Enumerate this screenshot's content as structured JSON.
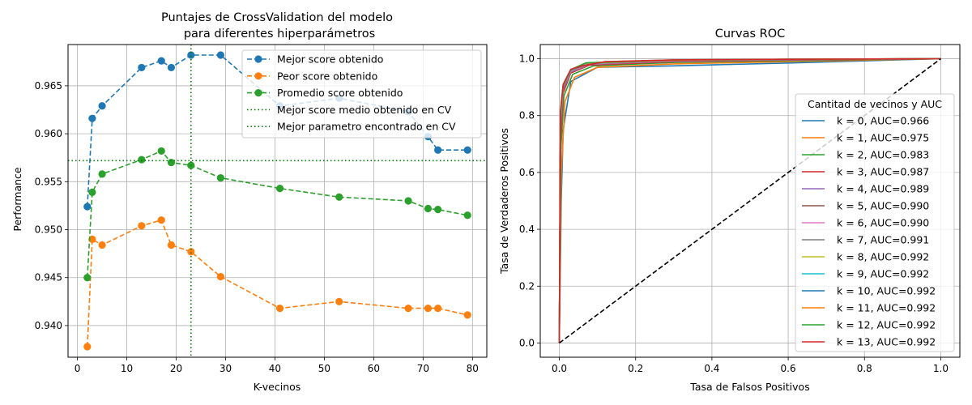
{
  "chart_data": [
    {
      "type": "line",
      "title": "Puntajes de CrossValidation del modelo",
      "subtitle": "para diferentes hiperparámetros",
      "xlabel": "K-vecinos",
      "ylabel": "Performance",
      "xlim": [
        -1.9,
        82.9
      ],
      "ylim": [
        0.9367,
        0.9693
      ],
      "xticks": [
        0,
        10,
        20,
        30,
        40,
        50,
        60,
        70,
        80
      ],
      "yticks": [
        0.94,
        0.945,
        0.95,
        0.955,
        0.96,
        0.965
      ],
      "xtick_labels": [
        "0",
        "10",
        "20",
        "30",
        "40",
        "50",
        "60",
        "70",
        "80"
      ],
      "ytick_labels": [
        "0.940",
        "0.945",
        "0.950",
        "0.955",
        "0.960",
        "0.965"
      ],
      "grid": true,
      "legend_position": "top-right",
      "x": [
        2,
        3,
        5,
        13,
        17,
        19,
        23,
        29,
        41,
        53,
        67,
        71,
        73,
        79
      ],
      "series": [
        {
          "name": "Mejor score obtenido",
          "color": "#1f77b4",
          "style": "dashed-marker",
          "values": [
            0.9524,
            0.9616,
            0.9629,
            0.9669,
            0.9676,
            0.9669,
            0.9682,
            0.9682,
            0.9629,
            0.9637,
            0.9623,
            0.9597,
            0.9583,
            0.9583
          ]
        },
        {
          "name": "Peor score obtenido",
          "color": "#ff7f0e",
          "style": "dashed-marker",
          "values": [
            0.9378,
            0.949,
            0.9484,
            0.9504,
            0.951,
            0.9484,
            0.9477,
            0.9451,
            0.9418,
            0.9425,
            0.9418,
            0.9418,
            0.9418,
            0.9411
          ]
        },
        {
          "name": "Promedio score obtenido",
          "color": "#2ca02c",
          "style": "dashed-marker",
          "values": [
            0.945,
            0.9539,
            0.9558,
            0.9573,
            0.9582,
            0.957,
            0.9567,
            0.9554,
            0.9543,
            0.9534,
            0.953,
            0.9522,
            0.9521,
            0.9515
          ]
        }
      ],
      "reference_lines": [
        {
          "name": "Mejor score medio obtenido en CV",
          "orientation": "horizontal",
          "value": 0.9572,
          "color": "#008000",
          "style": "dotted"
        },
        {
          "name": "Mejor parametro encontrado en CV",
          "orientation": "vertical",
          "value": 23,
          "color": "#008000",
          "style": "dotted"
        }
      ]
    },
    {
      "type": "line",
      "title": "Curvas ROC",
      "xlabel": "Tasa de Falsos Positivos",
      "ylabel": "Tasa de Verdaderos Positivos",
      "xlim": [
        -0.05,
        1.05
      ],
      "ylim": [
        -0.05,
        1.05
      ],
      "xticks": [
        0.0,
        0.2,
        0.4,
        0.6,
        0.8,
        1.0
      ],
      "yticks": [
        0.0,
        0.2,
        0.4,
        0.6,
        0.8,
        1.0
      ],
      "xtick_labels": [
        "0.0",
        "0.2",
        "0.4",
        "0.6",
        "0.8",
        "1.0"
      ],
      "ytick_labels": [
        "0.0",
        "0.2",
        "0.4",
        "0.6",
        "0.8",
        "1.0"
      ],
      "grid": true,
      "legend_title": "Cantitad de vecinos y AUC",
      "legend_position": "center-right",
      "diagonal": {
        "color": "#000000",
        "style": "dashed",
        "points": [
          [
            0,
            0
          ],
          [
            1,
            1
          ]
        ]
      },
      "series": [
        {
          "name": "k = 0, AUC=0.966",
          "color": "#1f77b4",
          "points": [
            [
              0,
              0
            ],
            [
              0.005,
              0.5
            ],
            [
              0.01,
              0.75
            ],
            [
              0.03,
              0.92
            ],
            [
              0.1,
              0.97
            ],
            [
              0.3,
              0.975
            ],
            [
              0.6,
              0.985
            ],
            [
              1,
              1
            ]
          ]
        },
        {
          "name": "k = 1, AUC=0.975",
          "color": "#ff7f0e",
          "points": [
            [
              0,
              0
            ],
            [
              0.005,
              0.6
            ],
            [
              0.015,
              0.85
            ],
            [
              0.04,
              0.935
            ],
            [
              0.1,
              0.97
            ],
            [
              0.3,
              0.982
            ],
            [
              0.6,
              0.99
            ],
            [
              1,
              1
            ]
          ]
        },
        {
          "name": "k = 2, AUC=0.983",
          "color": "#2ca02c",
          "points": [
            [
              0,
              0
            ],
            [
              0.004,
              0.68
            ],
            [
              0.012,
              0.87
            ],
            [
              0.035,
              0.945
            ],
            [
              0.09,
              0.975
            ],
            [
              0.3,
              0.987
            ],
            [
              0.6,
              0.993
            ],
            [
              1,
              1
            ]
          ]
        },
        {
          "name": "k = 3, AUC=0.987",
          "color": "#d62728",
          "points": [
            [
              0,
              0
            ],
            [
              0.003,
              0.72
            ],
            [
              0.01,
              0.88
            ],
            [
              0.03,
              0.95
            ],
            [
              0.08,
              0.978
            ],
            [
              0.3,
              0.99
            ],
            [
              0.6,
              0.995
            ],
            [
              1,
              1
            ]
          ]
        },
        {
          "name": "k = 4, AUC=0.989",
          "color": "#9467bd",
          "points": [
            [
              0,
              0
            ],
            [
              0.003,
              0.75
            ],
            [
              0.01,
              0.89
            ],
            [
              0.03,
              0.953
            ],
            [
              0.08,
              0.98
            ],
            [
              0.3,
              0.992
            ],
            [
              0.6,
              0.996
            ],
            [
              1,
              1
            ]
          ]
        },
        {
          "name": "k = 5, AUC=0.990",
          "color": "#8c564b",
          "points": [
            [
              0,
              0
            ],
            [
              0.003,
              0.77
            ],
            [
              0.01,
              0.895
            ],
            [
              0.03,
              0.955
            ],
            [
              0.08,
              0.981
            ],
            [
              0.3,
              0.993
            ],
            [
              0.6,
              0.997
            ],
            [
              1,
              1
            ]
          ]
        },
        {
          "name": "k = 6, AUC=0.990",
          "color": "#e377c2",
          "points": [
            [
              0,
              0
            ],
            [
              0.003,
              0.78
            ],
            [
              0.01,
              0.9
            ],
            [
              0.03,
              0.956
            ],
            [
              0.08,
              0.982
            ],
            [
              0.3,
              0.993
            ],
            [
              0.6,
              0.997
            ],
            [
              1,
              1
            ]
          ]
        },
        {
          "name": "k = 7, AUC=0.991",
          "color": "#7f7f7f",
          "points": [
            [
              0,
              0
            ],
            [
              0.003,
              0.79
            ],
            [
              0.01,
              0.902
            ],
            [
              0.03,
              0.958
            ],
            [
              0.08,
              0.983
            ],
            [
              0.3,
              0.994
            ],
            [
              0.6,
              0.997
            ],
            [
              1,
              1
            ]
          ]
        },
        {
          "name": "k = 8, AUC=0.992",
          "color": "#bcbd22",
          "points": [
            [
              0,
              0
            ],
            [
              0.003,
              0.8
            ],
            [
              0.01,
              0.905
            ],
            [
              0.03,
              0.96
            ],
            [
              0.07,
              0.984
            ],
            [
              0.3,
              0.995
            ],
            [
              0.6,
              0.998
            ],
            [
              1,
              1
            ]
          ]
        },
        {
          "name": "k = 9, AUC=0.992",
          "color": "#17becf",
          "points": [
            [
              0,
              0
            ],
            [
              0.003,
              0.8
            ],
            [
              0.01,
              0.906
            ],
            [
              0.03,
              0.96
            ],
            [
              0.07,
              0.984
            ],
            [
              0.3,
              0.995
            ],
            [
              0.6,
              0.998
            ],
            [
              1,
              1
            ]
          ]
        },
        {
          "name": "k = 10, AUC=0.992",
          "color": "#1f77b4",
          "points": [
            [
              0,
              0
            ],
            [
              0.003,
              0.81
            ],
            [
              0.01,
              0.907
            ],
            [
              0.03,
              0.961
            ],
            [
              0.07,
              0.985
            ],
            [
              0.3,
              0.995
            ],
            [
              0.6,
              0.998
            ],
            [
              1,
              1
            ]
          ]
        },
        {
          "name": "k = 11, AUC=0.992",
          "color": "#ff7f0e",
          "points": [
            [
              0,
              0
            ],
            [
              0.003,
              0.81
            ],
            [
              0.01,
              0.908
            ],
            [
              0.03,
              0.962
            ],
            [
              0.07,
              0.985
            ],
            [
              0.3,
              0.995
            ],
            [
              0.6,
              0.998
            ],
            [
              1,
              1
            ]
          ]
        },
        {
          "name": "k = 12, AUC=0.992",
          "color": "#2ca02c",
          "points": [
            [
              0,
              0
            ],
            [
              0.003,
              0.815
            ],
            [
              0.01,
              0.909
            ],
            [
              0.03,
              0.962
            ],
            [
              0.07,
              0.986
            ],
            [
              0.3,
              0.996
            ],
            [
              0.6,
              0.998
            ],
            [
              1,
              1
            ]
          ]
        },
        {
          "name": "k = 13, AUC=0.992",
          "color": "#d62728",
          "points": [
            [
              0,
              0
            ],
            [
              0.003,
              0.82
            ],
            [
              0.01,
              0.91
            ],
            [
              0.03,
              0.963
            ],
            [
              0.06,
              0.975
            ],
            [
              0.12,
              0.99
            ],
            [
              0.3,
              0.996
            ],
            [
              0.6,
              0.998
            ],
            [
              1,
              1
            ]
          ]
        }
      ]
    }
  ]
}
